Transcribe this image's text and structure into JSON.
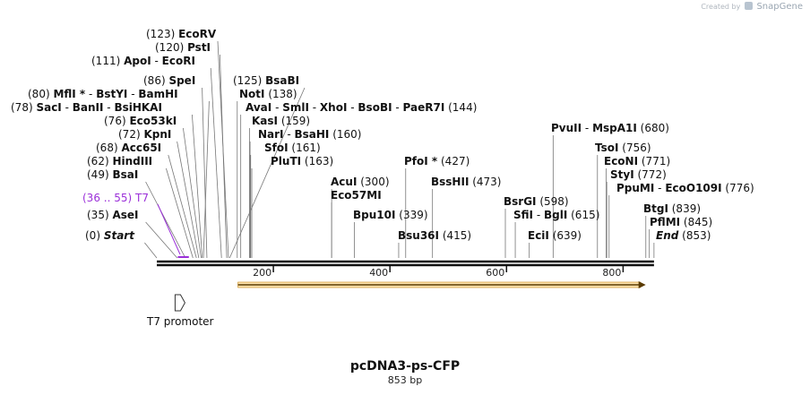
{
  "credit": {
    "prefix": "Created by",
    "brand": "SnapGene"
  },
  "map": {
    "name": "pcDNA3-ps-CFP",
    "length_label": "853 bp",
    "length_bp": 853,
    "ticks": [
      "200",
      "400",
      "600",
      "800"
    ],
    "tick_bp": [
      200,
      400,
      600,
      800
    ]
  },
  "sites": [
    {
      "pos": "(0)",
      "bp": 0,
      "names": [
        "Start"
      ],
      "italic": true
    },
    {
      "pos": "(35)",
      "bp": 35,
      "names": [
        "AseI"
      ]
    },
    {
      "pos": "(49)",
      "bp": 49,
      "names": [
        "BsaI"
      ]
    },
    {
      "pos": "(62)",
      "bp": 62,
      "names": [
        "HindIII"
      ]
    },
    {
      "pos": "(68)",
      "bp": 68,
      "names": [
        "Acc65I"
      ]
    },
    {
      "pos": "(72)",
      "bp": 72,
      "names": [
        "KpnI"
      ]
    },
    {
      "pos": "(76)",
      "bp": 76,
      "names": [
        "Eco53kI"
      ]
    },
    {
      "pos": "(78)",
      "bp": 78,
      "names": [
        "SacI",
        "BanII",
        "BsiHKAI"
      ]
    },
    {
      "pos": "(80)",
      "bp": 80,
      "names": [
        "MflI *",
        "BstYI",
        "BamHI"
      ]
    },
    {
      "pos": "(86)",
      "bp": 86,
      "names": [
        "SpeI"
      ]
    },
    {
      "pos": "(111)",
      "bp": 111,
      "names": [
        "ApoI",
        "EcoRI"
      ]
    },
    {
      "pos": "(120)",
      "bp": 120,
      "names": [
        "PstI"
      ]
    },
    {
      "pos": "(123)",
      "bp": 123,
      "names": [
        "EcoRV"
      ]
    },
    {
      "pos": "(125)",
      "bp": 125,
      "names": [
        "BsaBI"
      ]
    },
    {
      "pos": "(138)",
      "bp": 138,
      "names": [
        "NotI"
      ]
    },
    {
      "pos": "(144)",
      "bp": 144,
      "names": [
        "AvaI",
        "SmlI",
        "XhoI",
        "BsoBI",
        "PaeR7I"
      ]
    },
    {
      "pos": "(159)",
      "bp": 159,
      "names": [
        "KasI"
      ]
    },
    {
      "pos": "(160)",
      "bp": 160,
      "names": [
        "NarI",
        "BsaHI"
      ]
    },
    {
      "pos": "(161)",
      "bp": 161,
      "names": [
        "SfoI"
      ]
    },
    {
      "pos": "(163)",
      "bp": 163,
      "names": [
        "PluTI"
      ]
    },
    {
      "pos": "(300)",
      "bp": 300,
      "names": [
        "AcuI"
      ]
    },
    {
      "pos": "",
      "bp": 300,
      "names": [
        "Eco57MI"
      ]
    },
    {
      "pos": "(339)",
      "bp": 339,
      "names": [
        "Bpu10I"
      ]
    },
    {
      "pos": "(415)",
      "bp": 415,
      "names": [
        "Bsu36I"
      ]
    },
    {
      "pos": "(427)",
      "bp": 427,
      "names": [
        "PfoI *"
      ]
    },
    {
      "pos": "(473)",
      "bp": 473,
      "names": [
        "BssHII"
      ]
    },
    {
      "pos": "(598)",
      "bp": 598,
      "names": [
        "BsrGI"
      ]
    },
    {
      "pos": "(615)",
      "bp": 615,
      "names": [
        "SfiI",
        "BglI"
      ]
    },
    {
      "pos": "(639)",
      "bp": 639,
      "names": [
        "EciI"
      ]
    },
    {
      "pos": "(680)",
      "bp": 680,
      "names": [
        "PvuII",
        "MspA1I"
      ]
    },
    {
      "pos": "(756)",
      "bp": 756,
      "names": [
        "TsoI"
      ]
    },
    {
      "pos": "(771)",
      "bp": 771,
      "names": [
        "EcoNI"
      ]
    },
    {
      "pos": "(772)",
      "bp": 772,
      "names": [
        "StyI"
      ]
    },
    {
      "pos": "(776)",
      "bp": 776,
      "names": [
        "PpuMI",
        "EcoO109I"
      ]
    },
    {
      "pos": "(839)",
      "bp": 839,
      "names": [
        "BtgI"
      ]
    },
    {
      "pos": "(845)",
      "bp": 845,
      "names": [
        "PflMI"
      ]
    },
    {
      "pos": "(853)",
      "bp": 853,
      "names": [
        "End"
      ],
      "italic": true
    }
  ],
  "primer": {
    "pos": "(36 .. 55)",
    "name": "T7",
    "start_bp": 36,
    "end_bp": 55,
    "color": "#9b30d9"
  },
  "feature": {
    "label": "T7 promoter",
    "bp": 36
  },
  "orf": {
    "start_bp": 150,
    "end_bp": 845,
    "color": "#f0a030"
  }
}
